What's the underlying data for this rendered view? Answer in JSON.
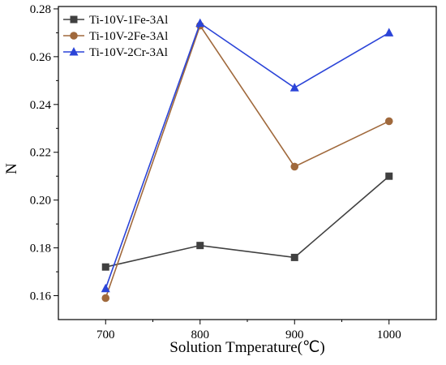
{
  "chart_data": {
    "type": "line",
    "title": "",
    "xlabel": "Solution Tmperature(℃)",
    "ylabel": "N",
    "x": [
      700,
      800,
      900,
      1000
    ],
    "xticks": [
      "700",
      "800",
      "900",
      "1000"
    ],
    "xlim": [
      650,
      1050
    ],
    "yticks": [
      "0.16",
      "0.18",
      "0.20",
      "0.22",
      "0.24",
      "0.26",
      "0.28"
    ],
    "ylim": [
      0.15,
      0.281
    ],
    "grid": false,
    "legend_position": "top-left",
    "series": [
      {
        "name": "Ti-10V-1Fe-3Al",
        "values": [
          0.172,
          0.181,
          0.176,
          0.21
        ],
        "color": "#404040",
        "marker": "square"
      },
      {
        "name": "Ti-10V-2Fe-3Al",
        "values": [
          0.159,
          0.273,
          0.214,
          0.233
        ],
        "color": "#a0693c",
        "marker": "circle"
      },
      {
        "name": "Ti-10V-2Cr-3Al",
        "values": [
          0.163,
          0.274,
          0.247,
          0.27
        ],
        "color": "#2b44d8",
        "marker": "triangle"
      }
    ]
  }
}
